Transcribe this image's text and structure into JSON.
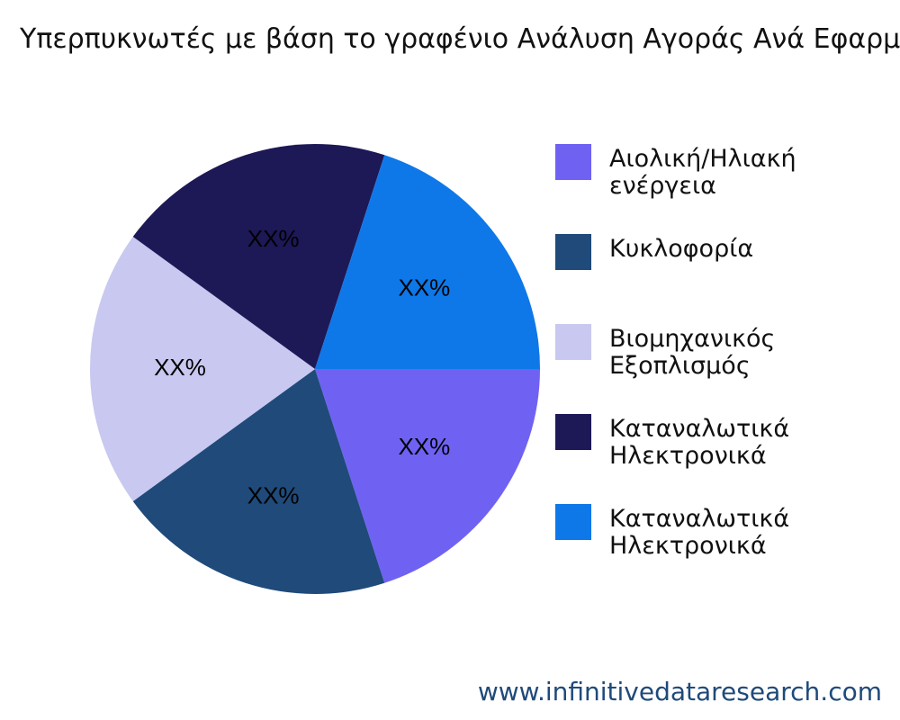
{
  "chart_data": {
    "type": "pie",
    "title": "Υπερπυκνωτές με βάση το γραφένιο Ανάλυση Αγοράς Ανά Εφαρμογή",
    "categories": [
      "Αιολική/Ηλιακή ενέργεια",
      "Κυκλοφορία",
      "Βιομηχανικός Εξοπλισμός",
      "Καταναλωτικά Ηλεκτρονικά",
      "Καταναλωτικά Ηλεκτρονικά"
    ],
    "values": [
      20,
      20,
      20,
      20,
      20
    ],
    "value_labels": [
      "XX%",
      "XX%",
      "XX%",
      "XX%",
      "XX%"
    ],
    "colors": [
      "#6f62f3",
      "#1f4a7a",
      "#c8c8f0",
      "#1d1856",
      "#0e78e8"
    ],
    "legend": "right",
    "watermark": "www.infinitivedataresearch.com"
  }
}
